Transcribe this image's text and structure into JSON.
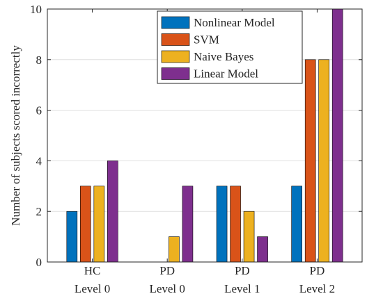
{
  "chart_data": {
    "type": "bar",
    "categories": [
      {
        "line1": "HC",
        "line2": "Level 0"
      },
      {
        "line1": "PD",
        "line2": "Level 0"
      },
      {
        "line1": "PD",
        "line2": "Level 1"
      },
      {
        "line1": "PD",
        "line2": "Level 2"
      }
    ],
    "series": [
      {
        "name": "Nonlinear Model",
        "color": "#0072BD",
        "values": [
          2,
          0,
          3,
          3
        ]
      },
      {
        "name": "SVM",
        "color": "#D95319",
        "values": [
          3,
          0,
          3,
          8
        ]
      },
      {
        "name": "Naive Bayes",
        "color": "#EDB120",
        "values": [
          3,
          1,
          2,
          8
        ]
      },
      {
        "name": "Linear Model",
        "color": "#7E2F8E",
        "values": [
          4,
          3,
          1,
          10
        ]
      }
    ],
    "ylabel": "Number of subjects scored incorrectly",
    "ylim": [
      0,
      10
    ],
    "yticks": [
      0,
      2,
      4,
      6,
      8,
      10
    ],
    "grid": true,
    "legend_position": "top-right"
  }
}
